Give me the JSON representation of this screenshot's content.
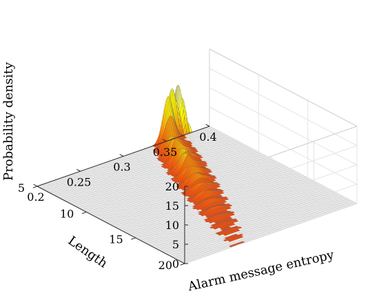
{
  "chart_data": {
    "type": "surface",
    "title": "",
    "xlabel": "Alarm message entropy",
    "ylabel": "Length",
    "zlabel": "Probability density",
    "xlim": [
      0.2,
      0.4
    ],
    "ylim": [
      5,
      20
    ],
    "zlim": [
      0,
      20
    ],
    "x_ticks": [
      "0.2",
      "0.25",
      "0.3",
      "0.35",
      "0.4"
    ],
    "y_ticks": [
      "5",
      "10",
      "15",
      "20"
    ],
    "z_ticks": [
      "0",
      "5",
      "10",
      "15",
      "20"
    ],
    "grid": true,
    "colormap": "hot",
    "peaks": [
      {
        "length": 5,
        "entropy": 0.352,
        "density": 11.5
      },
      {
        "length": 6,
        "entropy": 0.346,
        "density": 16.5
      },
      {
        "length": 7,
        "entropy": 0.34,
        "density": 18.5
      },
      {
        "length": 8,
        "entropy": 0.334,
        "density": 16.8
      },
      {
        "length": 9,
        "entropy": 0.328,
        "density": 13.0
      },
      {
        "length": 10,
        "entropy": 0.322,
        "density": 9.0
      },
      {
        "length": 11,
        "entropy": 0.316,
        "density": 6.0
      },
      {
        "length": 12,
        "entropy": 0.31,
        "density": 4.0
      },
      {
        "length": 13,
        "entropy": 0.304,
        "density": 2.6
      },
      {
        "length": 14,
        "entropy": 0.298,
        "density": 1.7
      },
      {
        "length": 15,
        "entropy": 0.292,
        "density": 1.1
      },
      {
        "length": 16,
        "entropy": 0.286,
        "density": 0.7
      },
      {
        "length": 17,
        "entropy": 0.28,
        "density": 0.45
      },
      {
        "length": 18,
        "entropy": 0.274,
        "density": 0.3
      },
      {
        "length": 19,
        "entropy": 0.268,
        "density": 0.2
      },
      {
        "length": 20,
        "entropy": 0.262,
        "density": 0.15
      }
    ]
  }
}
